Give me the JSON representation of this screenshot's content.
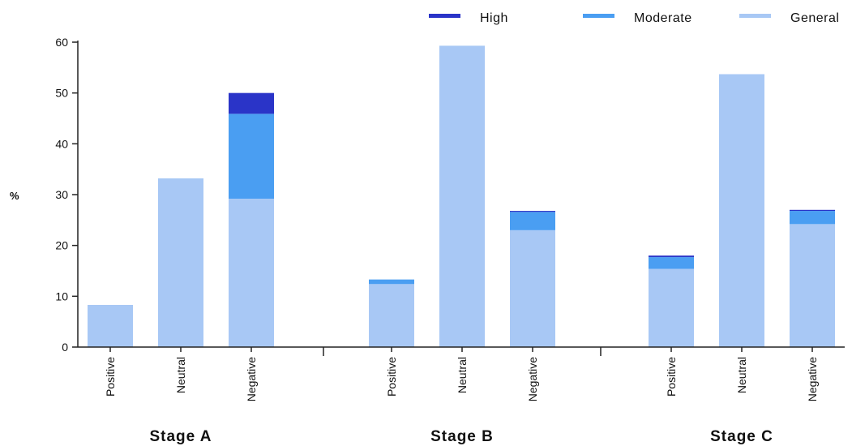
{
  "chart_data": {
    "type": "bar",
    "stacked": true,
    "ylabel": "%",
    "ylim": [
      0,
      60
    ],
    "yticks": [
      0,
      10,
      20,
      30,
      40,
      50,
      60
    ],
    "grid": false,
    "legend_position": "top-right",
    "groups": [
      {
        "name": "Stage A",
        "categories": [
          "Positive",
          "Neutral",
          "Negative"
        ]
      },
      {
        "name": "Stage B",
        "categories": [
          "Positive",
          "Neutral",
          "Negative"
        ]
      },
      {
        "name": "Stage C",
        "categories": [
          "Positive",
          "Neutral",
          "Negative"
        ]
      }
    ],
    "series": [
      {
        "name": "General",
        "color": "#a8c8f5",
        "values": [
          [
            8.3,
            33.2,
            29.2
          ],
          [
            12.4,
            59.3,
            23.0
          ],
          [
            15.4,
            53.7,
            24.2
          ]
        ]
      },
      {
        "name": "Moderate",
        "color": "#4a9ef2",
        "values": [
          [
            0,
            0,
            16.7
          ],
          [
            0.9,
            0,
            3.6
          ],
          [
            2.3,
            0,
            2.6
          ]
        ]
      },
      {
        "name": "High",
        "color": "#2a34c8",
        "values": [
          [
            0,
            0,
            4.1
          ],
          [
            0,
            0,
            0.2
          ],
          [
            0.3,
            0,
            0.2
          ]
        ]
      }
    ],
    "legend_order": [
      "High",
      "Moderate",
      "General"
    ]
  }
}
